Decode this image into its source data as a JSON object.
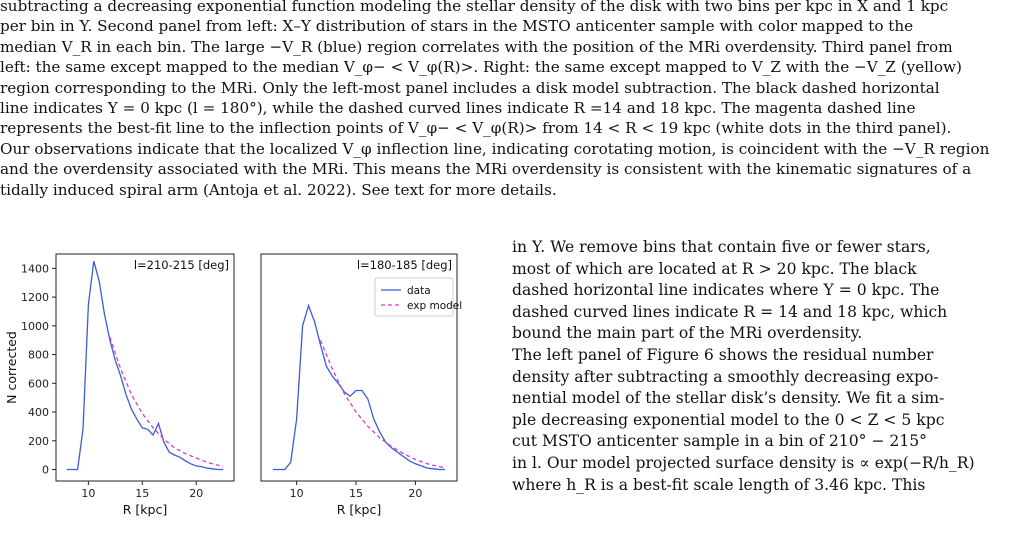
{
  "caption": {
    "lines": [
      "subtracting a decreasing exponential function modeling the stellar density of the disk with two bins per kpc in X and 1 kpc",
      "per bin in Y. Second panel from left: X–Y distribution of stars in the MSTO anticenter sample with color mapped to the",
      "median V_R in each bin. The large −V_R (blue) region correlates with the position of the MRi overdensity. Third panel from",
      "left: the same except mapped to the median V_φ− < V_φ(R)>. Right: the same except mapped to V_Z with the −V_Z (yellow)",
      "region corresponding to the MRi. Only the left-most panel includes a disk model subtraction. The black dashed horizontal",
      "line indicates Y = 0 kpc (l = 180°), while the dashed curved lines indicate R =14 and 18 kpc. The magenta dashed line",
      "represents the best-fit line to the inflection points of V_φ− < V_φ(R)> from 14 < R < 19 kpc (white dots in the third panel).",
      "Our observations indicate that the localized V_φ inflection line, indicating corotating motion, is coincident with the −V_R region",
      "and the overdensity associated with the MRi. This means the MRi overdensity is consistent with the kinematic signatures of a",
      "tidally induced spiral arm (Antoja et al. 2022). See text for more details."
    ]
  },
  "column": {
    "lines": [
      "in Y. We remove bins that contain five or fewer stars,",
      "most of which are located at R > 20 kpc. The black",
      "dashed horizontal line indicates where Y = 0 kpc. The",
      "dashed curved lines indicate R = 14 and 18 kpc, which",
      "bound the main part of the MRi overdensity.",
      "    The left panel of Figure 6 shows the residual number",
      "density after subtracting a smoothly decreasing expo-",
      "nential model of the stellar disk’s density. We fit a sim-",
      "ple decreasing exponential model to the 0 < Z < 5 kpc",
      "cut MSTO anticenter sample in a bin of 210° − 215°",
      "in l. Our model projected surface density is ∝ exp(−R/h_R)",
      "where h_R is a best-fit scale length of 3.46 kpc. This"
    ]
  },
  "chart_data": [
    {
      "type": "line",
      "panel_label": "l=210-215 [deg]",
      "xlabel": "R [kpc]",
      "ylabel": "N corrected",
      "xlim": [
        7,
        23.5
      ],
      "ylim": [
        -80,
        1500
      ],
      "xticks": [
        10,
        15,
        20
      ],
      "yticks": [
        0,
        200,
        400,
        600,
        800,
        1000,
        1200,
        1400
      ],
      "series": [
        {
          "name": "data",
          "color": "#3b5bdb",
          "dash": false,
          "x": [
            8,
            8.5,
            9,
            9.5,
            10,
            10.5,
            11,
            11.5,
            12,
            12.5,
            13,
            13.5,
            14,
            14.5,
            15,
            15.5,
            16,
            16.5,
            17,
            17.5,
            18,
            18.5,
            19,
            19.5,
            20,
            20.5,
            21,
            21.5,
            22,
            22.5
          ],
          "y": [
            0,
            0,
            0,
            280,
            1150,
            1450,
            1310,
            1080,
            900,
            760,
            650,
            520,
            420,
            350,
            290,
            280,
            240,
            320,
            190,
            120,
            100,
            85,
            60,
            40,
            25,
            20,
            10,
            5,
            0,
            0
          ]
        },
        {
          "name": "exp model",
          "color": "#e03ac8",
          "dash": true,
          "x": [
            12,
            13,
            14,
            15,
            16,
            17,
            18,
            19,
            20,
            21,
            22,
            22.5
          ],
          "y": [
            920,
            700,
            520,
            390,
            290,
            210,
            150,
            110,
            80,
            50,
            30,
            20
          ]
        }
      ]
    },
    {
      "type": "line",
      "panel_label": "l=180-185 [deg]",
      "xlabel": "R [kpc]",
      "ylabel": "",
      "xlim": [
        7,
        23.5
      ],
      "ylim": [
        -80,
        1500
      ],
      "xticks": [
        10,
        15,
        20
      ],
      "yticks": [],
      "legend": [
        "data",
        "exp model"
      ],
      "legend_position": "top-right",
      "series": [
        {
          "name": "data",
          "color": "#3b5bdb",
          "dash": false,
          "x": [
            8,
            8.5,
            9,
            9.5,
            10,
            10.5,
            11,
            11.5,
            12,
            12.5,
            13,
            13.5,
            14,
            14.5,
            15,
            15.5,
            16,
            16.5,
            17,
            17.5,
            18,
            18.5,
            19,
            19.5,
            20,
            20.5,
            21,
            21.5,
            22,
            22.5
          ],
          "y": [
            0,
            0,
            0,
            50,
            350,
            1000,
            1140,
            1030,
            870,
            720,
            650,
            600,
            540,
            510,
            550,
            550,
            490,
            350,
            260,
            190,
            150,
            120,
            90,
            60,
            40,
            25,
            10,
            5,
            0,
            0
          ]
        },
        {
          "name": "exp model",
          "color": "#e03ac8",
          "dash": true,
          "x": [
            12,
            13,
            14,
            15,
            16,
            17,
            18,
            19,
            20,
            21,
            22,
            22.5
          ],
          "y": [
            900,
            700,
            530,
            400,
            300,
            220,
            160,
            110,
            70,
            40,
            20,
            10
          ]
        }
      ]
    }
  ]
}
